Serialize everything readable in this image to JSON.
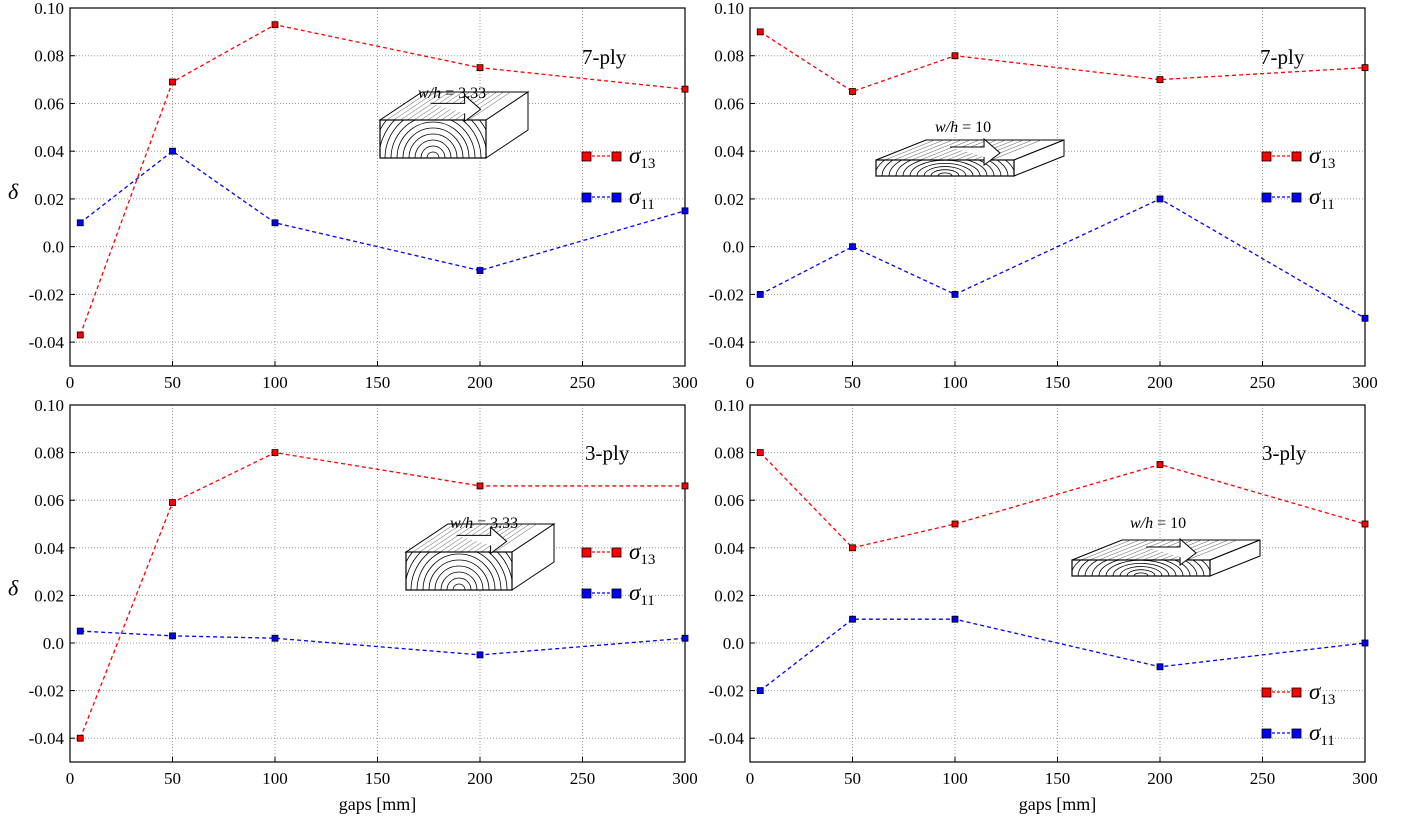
{
  "figure": {
    "xlabel": "gaps [mm]",
    "ylabel": "δ",
    "colors": {
      "sigma13": "#ff0000",
      "sigma11": "#0000ff",
      "grid": "#9a9a9a"
    }
  },
  "chart_data": [
    {
      "type": "line",
      "id": "top-left",
      "ply_label": "7-ply",
      "ratio_prefix": "w/h",
      "ratio_value": "= 3.33",
      "xlabel": "",
      "ylabel": "δ",
      "xlim": [
        0,
        300
      ],
      "ylim": [
        -0.05,
        0.1
      ],
      "xticks": [
        "0",
        "50",
        "100",
        "150",
        "200",
        "250",
        "300"
      ],
      "yticks": [
        "0.10",
        "0.08",
        "0.06",
        "0.04",
        "0.02",
        "0.0",
        "-0.02",
        "-0.04"
      ],
      "x": [
        5,
        50,
        100,
        200,
        300
      ],
      "legend_position": "right",
      "grid": true,
      "series": [
        {
          "name": "σ13",
          "sym": "σ",
          "sub": "13",
          "color": "#ff0000",
          "values": [
            -0.037,
            0.069,
            0.093,
            0.075,
            0.066
          ]
        },
        {
          "name": "σ11",
          "sym": "σ",
          "sub": "11",
          "color": "#0000ff",
          "values": [
            0.01,
            0.04,
            0.01,
            -0.01,
            0.015
          ]
        }
      ]
    },
    {
      "type": "line",
      "id": "top-right",
      "ply_label": "7-ply",
      "ratio_prefix": "w/h",
      "ratio_value": "= 10",
      "xlabel": "",
      "ylabel": "",
      "xlim": [
        0,
        300
      ],
      "ylim": [
        -0.05,
        0.1
      ],
      "xticks": [
        "0",
        "50",
        "100",
        "150",
        "200",
        "250",
        "300"
      ],
      "yticks": [
        "0.10",
        "0.08",
        "0.06",
        "0.04",
        "0.02",
        "0.0",
        "-0.02",
        "-0.04"
      ],
      "x": [
        5,
        50,
        100,
        200,
        300
      ],
      "legend_position": "right",
      "grid": true,
      "series": [
        {
          "name": "σ13",
          "sym": "σ",
          "sub": "13",
          "color": "#ff0000",
          "values": [
            0.09,
            0.065,
            0.08,
            0.07,
            0.075
          ]
        },
        {
          "name": "σ11",
          "sym": "σ",
          "sub": "11",
          "color": "#0000ff",
          "values": [
            -0.02,
            0.0,
            -0.02,
            0.02,
            -0.03
          ]
        }
      ]
    },
    {
      "type": "line",
      "id": "bottom-left",
      "ply_label": "3-ply",
      "ratio_prefix": "w/h",
      "ratio_value": "= 3.33",
      "xlabel": "gaps [mm]",
      "ylabel": "δ",
      "xlim": [
        0,
        300
      ],
      "ylim": [
        -0.05,
        0.1
      ],
      "xticks": [
        "0",
        "50",
        "100",
        "150",
        "200",
        "250",
        "300"
      ],
      "yticks": [
        "0.10",
        "0.08",
        "0.06",
        "0.04",
        "0.02",
        "0.0",
        "-0.02",
        "-0.04"
      ],
      "x": [
        5,
        50,
        100,
        200,
        300
      ],
      "legend_position": "right",
      "grid": true,
      "series": [
        {
          "name": "σ13",
          "sym": "σ",
          "sub": "13",
          "color": "#ff0000",
          "values": [
            -0.04,
            0.059,
            0.08,
            0.066,
            0.066
          ]
        },
        {
          "name": "σ11",
          "sym": "σ",
          "sub": "11",
          "color": "#0000ff",
          "values": [
            0.005,
            0.003,
            0.002,
            -0.005,
            0.002
          ]
        }
      ]
    },
    {
      "type": "line",
      "id": "bottom-right",
      "ply_label": "3-ply",
      "ratio_prefix": "w/h",
      "ratio_value": "= 10",
      "xlabel": "gaps [mm]",
      "ylabel": "",
      "xlim": [
        0,
        300
      ],
      "ylim": [
        -0.05,
        0.1
      ],
      "xticks": [
        "0",
        "50",
        "100",
        "150",
        "200",
        "250",
        "300"
      ],
      "yticks": [
        "0.10",
        "0.08",
        "0.06",
        "0.04",
        "0.02",
        "0.0",
        "-0.02",
        "-0.04"
      ],
      "x": [
        5,
        50,
        100,
        200,
        300
      ],
      "legend_position": "bottom-right",
      "grid": true,
      "series": [
        {
          "name": "σ13",
          "sym": "σ",
          "sub": "13",
          "color": "#ff0000",
          "values": [
            0.08,
            0.04,
            0.05,
            0.075,
            0.05
          ]
        },
        {
          "name": "σ11",
          "sym": "σ",
          "sub": "11",
          "color": "#0000ff",
          "values": [
            -0.02,
            0.01,
            0.01,
            -0.01,
            0.0
          ]
        }
      ]
    }
  ]
}
